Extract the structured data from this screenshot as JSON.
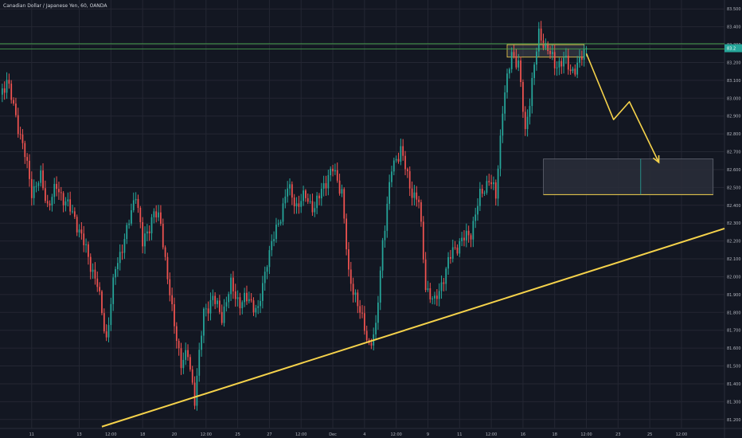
{
  "header": {
    "title": "Canadian Dollar / Japanese Yen, 60, OANDA"
  },
  "colors": {
    "background": "#131722",
    "grid": "#242733",
    "up": "#26a69a",
    "down": "#ef5350",
    "drawing": "#f5d24b",
    "hline": "#4caf50",
    "zone_fill": "#2a2e39",
    "zone_stroke": "#787b86",
    "text": "#b2b5be",
    "price_label_bg": "#26a69a"
  },
  "chart_data": {
    "type": "candlestick",
    "title": "Canadian Dollar / Japanese Yen, 60, OANDA",
    "xlabel": "",
    "ylabel": "",
    "ylim": [
      81.15,
      83.55
    ],
    "grid": true,
    "y_ticks": [
      "81.200",
      "81.300",
      "81.400",
      "81.500",
      "81.600",
      "81.700",
      "81.800",
      "81.900",
      "82.000",
      "82.100",
      "82.200",
      "82.300",
      "82.400",
      "82.500",
      "82.600",
      "82.700",
      "82.800",
      "82.900",
      "83.000",
      "83.100",
      "83.200",
      "83.300",
      "83.400",
      "83.500"
    ],
    "x_ticks": [
      "11",
      "13",
      "12:00",
      "18",
      "20",
      "12:00",
      "25",
      "27",
      "12:00",
      "Dec",
      "4",
      "12:00",
      "9",
      "11",
      "12:00",
      "16",
      "18",
      "12:00",
      "23",
      "25",
      "12:00"
    ],
    "x_tick_index": [
      14,
      35,
      49,
      63,
      77,
      91,
      105,
      119,
      133,
      147,
      161,
      175,
      189,
      203,
      217,
      231,
      245,
      259,
      273,
      287,
      301
    ],
    "x_total": 320,
    "price_series": [
      [
        0,
        83.02
      ],
      [
        3,
        83.1
      ],
      [
        7,
        82.9
      ],
      [
        11,
        82.68
      ],
      [
        14,
        82.48
      ],
      [
        18,
        82.55
      ],
      [
        21,
        82.4
      ],
      [
        25,
        82.5
      ],
      [
        29,
        82.42
      ],
      [
        33,
        82.33
      ],
      [
        38,
        82.15
      ],
      [
        43,
        81.95
      ],
      [
        47,
        81.65
      ],
      [
        51,
        82.05
      ],
      [
        56,
        82.25
      ],
      [
        60,
        82.48
      ],
      [
        63,
        82.18
      ],
      [
        68,
        82.36
      ],
      [
        71,
        82.3
      ],
      [
        76,
        81.8
      ],
      [
        80,
        81.52
      ],
      [
        83,
        81.56
      ],
      [
        86,
        81.32
      ],
      [
        90,
        81.8
      ],
      [
        94,
        81.88
      ],
      [
        98,
        81.78
      ],
      [
        102,
        81.95
      ],
      [
        106,
        81.85
      ],
      [
        110,
        81.88
      ],
      [
        114,
        81.8
      ],
      [
        118,
        82.1
      ],
      [
        123,
        82.3
      ],
      [
        127,
        82.5
      ],
      [
        131,
        82.4
      ],
      [
        135,
        82.45
      ],
      [
        139,
        82.38
      ],
      [
        143,
        82.52
      ],
      [
        147,
        82.6
      ],
      [
        151,
        82.48
      ],
      [
        154,
        82.0
      ],
      [
        157,
        81.9
      ],
      [
        160,
        81.75
      ],
      [
        163,
        81.62
      ],
      [
        166,
        81.7
      ],
      [
        169,
        82.2
      ],
      [
        173,
        82.6
      ],
      [
        177,
        82.72
      ],
      [
        181,
        82.5
      ],
      [
        185,
        82.42
      ],
      [
        188,
        81.95
      ],
      [
        192,
        81.85
      ],
      [
        196,
        82.0
      ],
      [
        200,
        82.15
      ],
      [
        204,
        82.2
      ],
      [
        208,
        82.25
      ],
      [
        212,
        82.45
      ],
      [
        216,
        82.55
      ],
      [
        219,
        82.45
      ],
      [
        222,
        82.95
      ],
      [
        226,
        83.25
      ],
      [
        229,
        83.2
      ],
      [
        232,
        82.8
      ],
      [
        235,
        83.1
      ],
      [
        238,
        83.35
      ],
      [
        242,
        83.28
      ],
      [
        245,
        83.18
      ],
      [
        249,
        83.22
      ],
      [
        252,
        83.15
      ],
      [
        256,
        83.2
      ],
      [
        259,
        83.28
      ]
    ],
    "hlines": [
      83.305,
      83.275
    ],
    "supply_zone": {
      "x": [
        224,
        258
      ],
      "y": [
        83.23,
        83.3
      ]
    },
    "target_zone": {
      "x": [
        240,
        315
      ],
      "y": [
        82.46,
        82.66
      ],
      "split_x": 283
    },
    "projection": [
      [
        259,
        83.25
      ],
      [
        271,
        82.88
      ],
      [
        278,
        82.98
      ],
      [
        291,
        82.64
      ]
    ],
    "trendline": [
      [
        45,
        81.16
      ],
      [
        320,
        82.27
      ]
    ],
    "last_price_label": "83.2"
  }
}
